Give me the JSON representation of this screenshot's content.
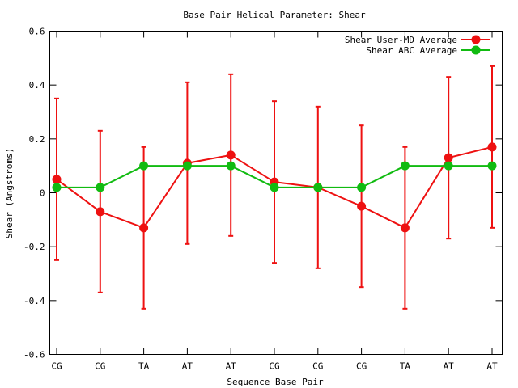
{
  "chart_data": {
    "type": "line",
    "title": "Base Pair Helical Parameter: Shear",
    "xlabel": "Sequence Base Pair",
    "ylabel": "Shear (Angstroms)",
    "categories": [
      "CG",
      "CG",
      "TA",
      "AT",
      "AT",
      "CG",
      "CG",
      "CG",
      "TA",
      "AT",
      "AT"
    ],
    "ylim": [
      -0.6,
      0.6
    ],
    "yticks": [
      -0.6,
      -0.4,
      -0.2,
      0,
      0.2,
      0.4,
      0.6
    ],
    "ytick_labels": [
      "-0.6",
      "-0.4",
      "-0.2",
      "0",
      "0.2",
      "0.4",
      "0.6"
    ],
    "grid": false,
    "legend_position": "top-right",
    "series": [
      {
        "name": "Shear User-MD Average",
        "color": "#ee1111",
        "values": [
          0.05,
          -0.07,
          -0.13,
          0.11,
          0.14,
          0.04,
          0.02,
          -0.05,
          -0.13,
          0.13,
          0.17
        ],
        "error_low": [
          -0.25,
          -0.37,
          -0.43,
          -0.19,
          -0.16,
          -0.26,
          -0.28,
          -0.35,
          -0.43,
          -0.17,
          -0.13
        ],
        "error_high": [
          0.35,
          0.23,
          0.17,
          0.41,
          0.44,
          0.34,
          0.32,
          0.25,
          0.17,
          0.43,
          0.47
        ]
      },
      {
        "name": "Shear ABC Average",
        "color": "#11bb11",
        "values": [
          0.02,
          0.02,
          0.1,
          0.1,
          0.1,
          0.02,
          0.02,
          0.02,
          0.1,
          0.1,
          0.1
        ]
      }
    ]
  }
}
